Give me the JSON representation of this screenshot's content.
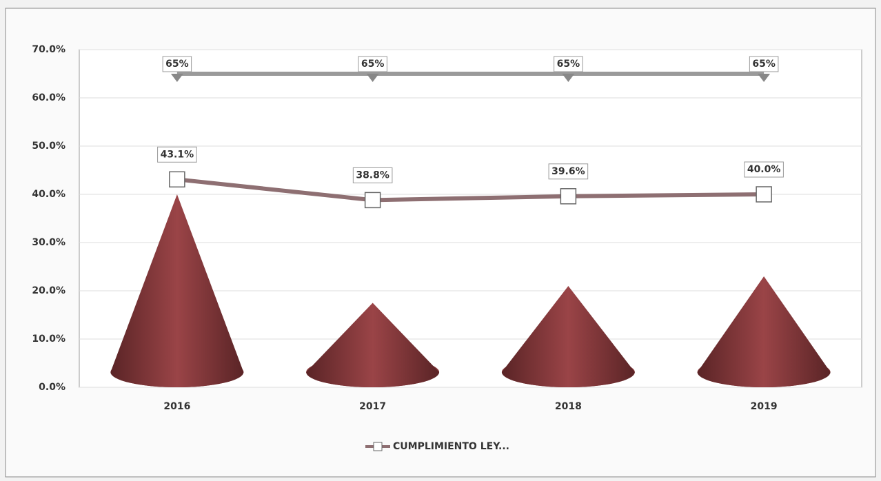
{
  "chart_data": {
    "type": "bar",
    "categories": [
      "2016",
      "2017",
      "2018",
      "2019"
    ],
    "ylim": [
      0,
      70
    ],
    "yticks": [
      {
        "value": 0,
        "label": "0.0%"
      },
      {
        "value": 10,
        "label": "10.0%"
      },
      {
        "value": 20,
        "label": "20.0%"
      },
      {
        "value": 30,
        "label": "30.0%"
      },
      {
        "value": 40,
        "label": "40.0%"
      },
      {
        "value": 50,
        "label": "50.0%"
      },
      {
        "value": 60,
        "label": "60.0%"
      },
      {
        "value": 70,
        "label": "70.0%"
      }
    ],
    "grid": true,
    "legend": "bottom",
    "series": [
      {
        "type": "bar",
        "color": "#8a3a3c",
        "values": [
          40,
          17.5,
          21,
          23
        ]
      },
      {
        "type": "line",
        "name": "CUMPLIMIENTO LEY...",
        "color": "#8e6f72",
        "values": [
          43.1,
          38.8,
          39.6,
          40.0
        ],
        "value_labels": [
          "43.1%",
          "38.8%",
          "39.6%",
          "40.0%"
        ]
      },
      {
        "type": "line",
        "color": "#9a9a9a",
        "values": [
          65,
          65,
          65,
          65
        ],
        "value_labels": [
          "65%",
          "65%",
          "65%",
          "65%"
        ]
      }
    ]
  }
}
